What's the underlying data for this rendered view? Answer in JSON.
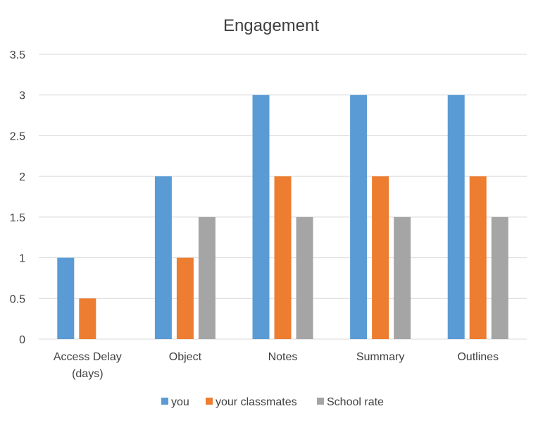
{
  "chart_data": {
    "type": "bar",
    "title": "Engagement",
    "xlabel": "",
    "ylabel": "",
    "categories": [
      [
        "Access Delay",
        "(days)"
      ],
      [
        "Object"
      ],
      [
        "Notes"
      ],
      [
        "Summary"
      ],
      [
        "Outlines"
      ]
    ],
    "series": [
      {
        "name": "you",
        "color": "#5b9bd5",
        "values": [
          1,
          2,
          3,
          3,
          3
        ]
      },
      {
        "name": "your classmates",
        "color": "#ed7d31",
        "values": [
          0.5,
          1,
          2,
          2,
          2
        ]
      },
      {
        "name": "School rate",
        "color": "#a5a5a5",
        "values": [
          0,
          1.5,
          1.5,
          1.5,
          1.5
        ]
      }
    ],
    "ylim": [
      0,
      3.5
    ],
    "yticks": [
      "0",
      "0.5",
      "1",
      "1.5",
      "2",
      "2.5",
      "3",
      "3.5"
    ],
    "grid": true,
    "legend_position": "bottom"
  }
}
